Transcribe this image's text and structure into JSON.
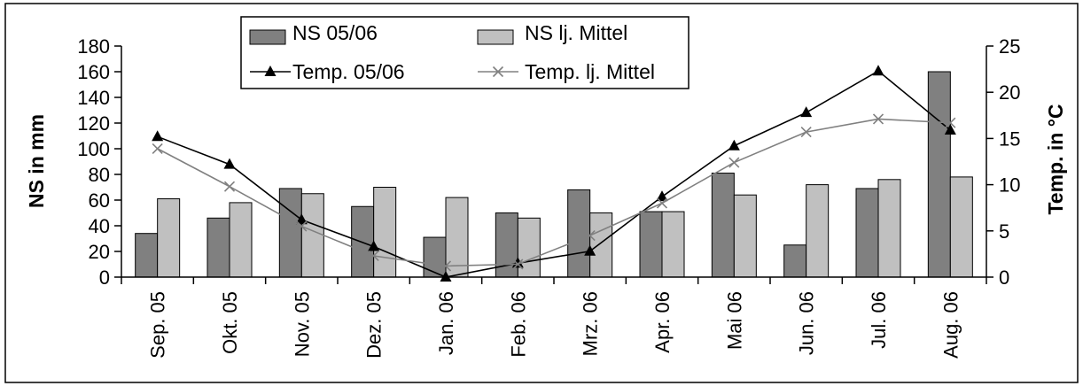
{
  "chart_data": {
    "type": "bar",
    "categories": [
      "Sep. 05",
      "Okt. 05",
      "Nov. 05",
      "Dez. 05",
      "Jan. 06",
      "Feb. 06",
      "Mrz. 06",
      "Apr. 06",
      "Mai 06",
      "Jun. 06",
      "Jul. 06",
      "Aug. 06"
    ],
    "bar_series": [
      {
        "name": "NS 05/06",
        "color": "#808080",
        "values": [
          34,
          46,
          69,
          55,
          31,
          50,
          68,
          51,
          81,
          25,
          69,
          160
        ]
      },
      {
        "name": "NS lj. Mittel",
        "color": "#c0c0c0",
        "values": [
          61,
          58,
          65,
          70,
          62,
          46,
          50,
          51,
          64,
          72,
          76,
          78
        ]
      }
    ],
    "line_series": [
      {
        "name": "Temp. 05/06",
        "color": "#000000",
        "marker": "triangle",
        "values": [
          15.2,
          12.2,
          6.2,
          3.3,
          0.0,
          1.5,
          2.8,
          8.7,
          14.2,
          17.8,
          22.3,
          15.9
        ]
      },
      {
        "name": "Temp. lj. Mittel",
        "color": "#808080",
        "marker": "x",
        "values": [
          13.9,
          9.8,
          5.5,
          2.3,
          1.2,
          1.4,
          4.5,
          8.0,
          12.4,
          15.7,
          17.1,
          16.7
        ]
      }
    ],
    "ylabel": "NS in mm",
    "y2label": "Temp. in °C",
    "ylim": [
      0,
      180
    ],
    "y2lim": [
      0,
      25
    ],
    "yticks": [
      "0",
      "20",
      "40",
      "60",
      "80",
      "100",
      "120",
      "140",
      "160",
      "180"
    ],
    "y2ticks": [
      "0",
      "5",
      "10",
      "15",
      "20",
      "25"
    ],
    "grid": false,
    "legend_position": "top-center"
  }
}
